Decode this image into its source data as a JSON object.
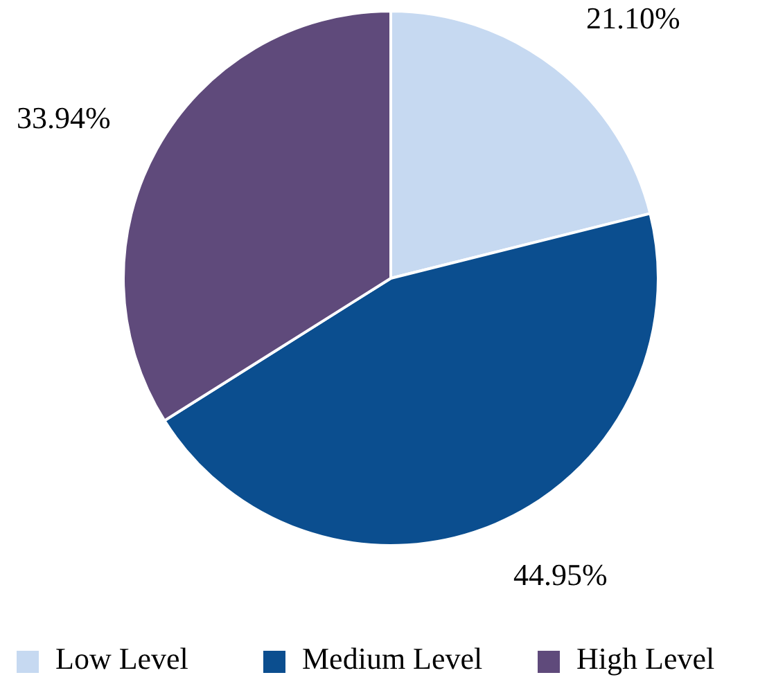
{
  "chart_data": {
    "type": "pie",
    "categories": [
      "Low Level",
      "Medium Level",
      "High Level"
    ],
    "values": [
      21.1,
      44.95,
      33.94
    ],
    "value_labels": [
      "21.10%",
      "44.95%",
      "33.94%"
    ],
    "colors": [
      "#c6d9f1",
      "#0b4e8f",
      "#5f4a7b"
    ],
    "legend": "bottom"
  }
}
